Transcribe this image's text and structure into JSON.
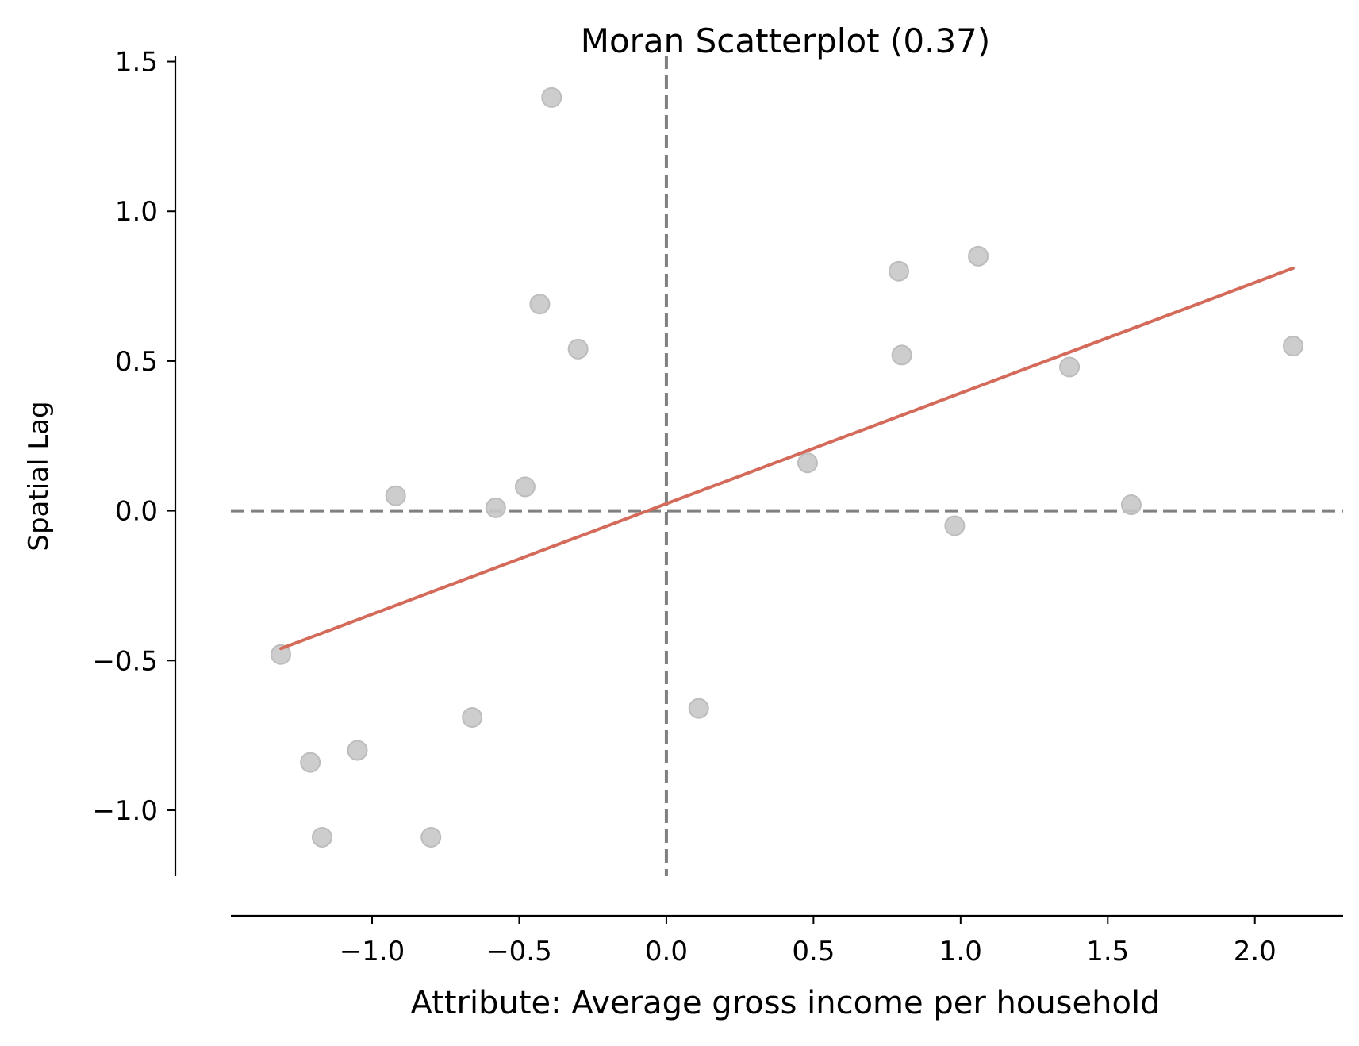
{
  "chart_data": {
    "type": "scatter",
    "title": "Moran Scatterplot (0.37)",
    "xlabel": "Attribute: Average gross income per household",
    "ylabel": "Spatial Lag",
    "xlim": [
      -1.48,
      2.3
    ],
    "ylim": [
      -1.22,
      1.52
    ],
    "x_ticks": [
      {
        "value": -1.0,
        "label": "−1.0"
      },
      {
        "value": -0.5,
        "label": "−0.5"
      },
      {
        "value": 0.0,
        "label": "0.0"
      },
      {
        "value": 0.5,
        "label": "0.5"
      },
      {
        "value": 1.0,
        "label": "1.0"
      },
      {
        "value": 1.5,
        "label": "1.5"
      },
      {
        "value": 2.0,
        "label": "2.0"
      }
    ],
    "y_ticks": [
      {
        "value": -1.0,
        "label": "−1.0"
      },
      {
        "value": -0.5,
        "label": "−0.5"
      },
      {
        "value": 0.0,
        "label": "0.0"
      },
      {
        "value": 0.5,
        "label": "0.5"
      },
      {
        "value": 1.0,
        "label": "1.0"
      },
      {
        "value": 1.5,
        "label": "1.5"
      }
    ],
    "grid": false,
    "reference_lines": {
      "x": 0.0,
      "y": 0.0,
      "style": "dashed",
      "color": "#808080"
    },
    "point_color": "#c8c8c8",
    "fit_color": "#d46a5a",
    "points": [
      {
        "x": -0.39,
        "y": 1.38
      },
      {
        "x": -0.43,
        "y": 0.69
      },
      {
        "x": -0.3,
        "y": 0.54
      },
      {
        "x": -0.92,
        "y": 0.05
      },
      {
        "x": -0.58,
        "y": 0.01
      },
      {
        "x": -0.48,
        "y": 0.08
      },
      {
        "x": -1.31,
        "y": -0.48
      },
      {
        "x": -1.21,
        "y": -0.84
      },
      {
        "x": -1.05,
        "y": -0.8
      },
      {
        "x": -0.66,
        "y": -0.69
      },
      {
        "x": -1.17,
        "y": -1.09
      },
      {
        "x": -0.8,
        "y": -1.09
      },
      {
        "x": 0.11,
        "y": -0.66
      },
      {
        "x": 0.48,
        "y": 0.16
      },
      {
        "x": 0.79,
        "y": 0.8
      },
      {
        "x": 0.8,
        "y": 0.52
      },
      {
        "x": 1.06,
        "y": 0.85
      },
      {
        "x": 0.98,
        "y": -0.05
      },
      {
        "x": 1.37,
        "y": 0.48
      },
      {
        "x": 1.58,
        "y": 0.02
      },
      {
        "x": 2.13,
        "y": 0.55
      }
    ],
    "fit_line": {
      "x": [
        -1.31,
        2.13
      ],
      "y": [
        -0.46,
        0.81
      ]
    }
  }
}
